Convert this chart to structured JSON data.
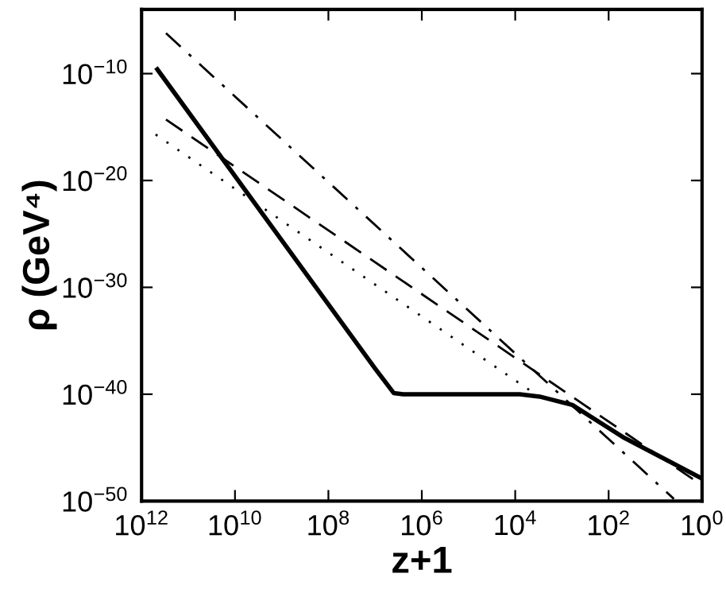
{
  "chart_data": {
    "type": "line",
    "xlabel": "z+1",
    "ylabel": "ρ (GeV⁴)",
    "log": "xy",
    "xlim": [
      1000000000000.0,
      1
    ],
    "ylim": [
      1e-50,
      0.0001
    ],
    "xticks": [
      {
        "value": 1000000000000.0,
        "label": "10$^{12}$"
      },
      {
        "value": 10000000000.0,
        "label": "10$^{10}$"
      },
      {
        "value": 100000000.0,
        "label": "10$^{8}$"
      },
      {
        "value": 1000000.0,
        "label": "10$^{6}$"
      },
      {
        "value": 10000.0,
        "label": "10$^{4}$"
      },
      {
        "value": 100,
        "label": "10$^{2}$"
      },
      {
        "value": 1,
        "label": "10$^{0}$"
      }
    ],
    "yticks": [
      {
        "value": 1e-50,
        "label": "10$^{−50}$"
      },
      {
        "value": 1e-40,
        "label": "10$^{−40}$"
      },
      {
        "value": 1e-30,
        "label": "10$^{−30}$"
      },
      {
        "value": 1e-20,
        "label": "10$^{−20}$"
      },
      {
        "value": 1e-10,
        "label": "10$^{−10}$"
      }
    ],
    "grid": false,
    "marker": "none",
    "series": [
      {
        "color": "#000000",
        "line_style": "solid",
        "x": [
          460000000000.0,
          10000000.0,
          4000000.0,
          2500000.0,
          8000.0,
          3000.0,
          600.0,
          50.0,
          1
        ],
        "values": [
          2.5e-10,
          2.5e-38,
          1.3e-40,
          1e-40,
          1e-40,
          6e-41,
          1e-41,
          1e-44,
          1.3e-48
        ]
      },
      {
        "color": "#000000",
        "line_style": "dashdot",
        "x": [
          300000000000.0,
          4
        ],
        "values": [
          6e-07,
          1.6e-50
        ]
      },
      {
        "color": "#000000",
        "line_style": "dashed",
        "x": [
          300000000000.0,
          1
        ],
        "values": [
          5e-15,
          3e-49
        ]
      },
      {
        "color": "#000000",
        "line_style": "dotted",
        "x": [
          500000000000.0,
          5000.0
        ],
        "values": [
          2e-16,
          2.5e-40
        ]
      }
    ]
  }
}
